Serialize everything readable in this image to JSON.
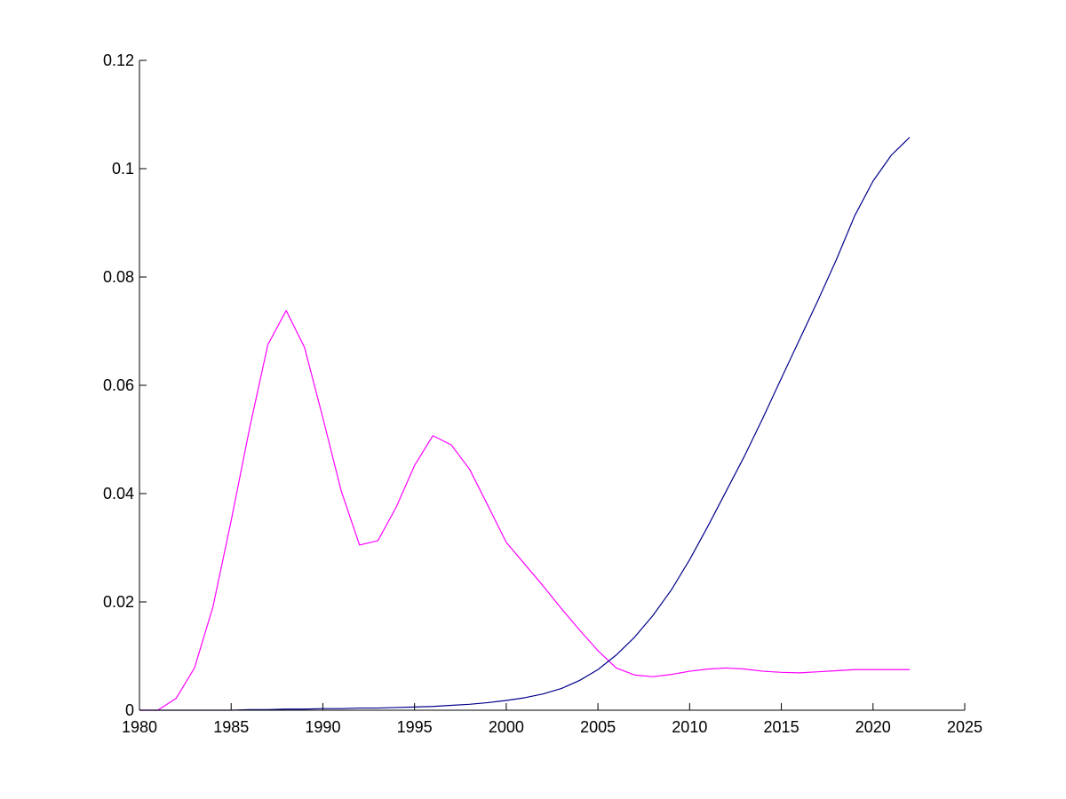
{
  "chart_data": {
    "type": "line",
    "title": "",
    "xlabel": "",
    "ylabel": "",
    "xlim": [
      1980,
      2025
    ],
    "ylim": [
      0,
      0.12
    ],
    "grid": false,
    "xticks": [
      1980,
      1985,
      1990,
      1995,
      2000,
      2005,
      2010,
      2015,
      2020,
      2025
    ],
    "xtick_labels": [
      "1980",
      "1985",
      "1990",
      "1995",
      "2000",
      "2005",
      "2010",
      "2015",
      "2020",
      "2025"
    ],
    "yticks": [
      0,
      0.02,
      0.04,
      0.06,
      0.08,
      0.1,
      0.12
    ],
    "ytick_labels": [
      "0",
      "0.02",
      "0.04",
      "0.06",
      "0.08",
      "0.1",
      "0.12"
    ],
    "x": [
      1980,
      1981,
      1982,
      1983,
      1984,
      1985,
      1986,
      1987,
      1988,
      1989,
      1990,
      1991,
      1992,
      1993,
      1994,
      1995,
      1996,
      1997,
      1998,
      1999,
      2000,
      2001,
      2002,
      2003,
      2004,
      2005,
      2006,
      2007,
      2008,
      2009,
      2010,
      2011,
      2012,
      2013,
      2014,
      2015,
      2016,
      2017,
      2018,
      2019,
      2020,
      2021,
      2022
    ],
    "series": [
      {
        "color": "#ff00ff",
        "values": [
          0,
          0,
          0.0022,
          0.0078,
          0.019,
          0.035,
          0.052,
          0.0675,
          0.0738,
          0.067,
          0.054,
          0.0405,
          0.0305,
          0.0313,
          0.0375,
          0.0452,
          0.0507,
          0.049,
          0.0445,
          0.0378,
          0.031,
          0.027,
          0.023,
          0.0188,
          0.0148,
          0.011,
          0.0078,
          0.0065,
          0.0062,
          0.0066,
          0.0072,
          0.0076,
          0.0078,
          0.0076,
          0.0072,
          0.007,
          0.0069,
          0.0071,
          0.0073,
          0.0075,
          0.0075,
          0.0075,
          0.0075
        ]
      },
      {
        "color": "#00008b",
        "values": [
          0,
          0,
          0,
          0,
          0,
          0,
          0.0001,
          0.0001,
          0.0002,
          0.0002,
          0.0003,
          0.0003,
          0.0004,
          0.0004,
          0.0005,
          0.0006,
          0.0007,
          0.0009,
          0.0011,
          0.0014,
          0.0018,
          0.0023,
          0.003,
          0.004,
          0.0055,
          0.0075,
          0.0102,
          0.0135,
          0.0175,
          0.0222,
          0.0278,
          0.034,
          0.0405,
          0.047,
          0.054,
          0.0613,
          0.0685,
          0.0757,
          0.0832,
          0.0913,
          0.0977,
          0.1025,
          0.1058
        ]
      }
    ]
  }
}
